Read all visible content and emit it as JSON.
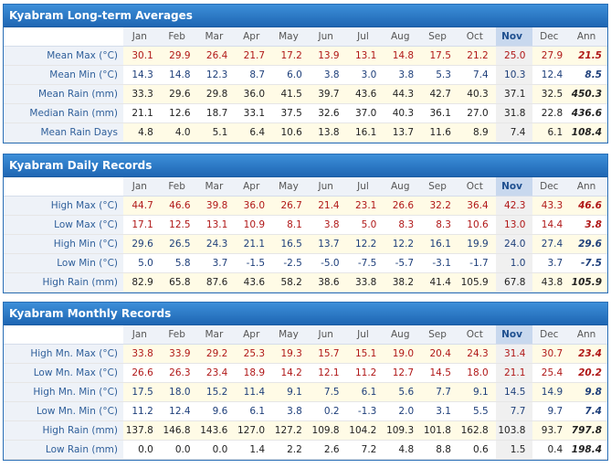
{
  "months": [
    "Jan",
    "Feb",
    "Mar",
    "Apr",
    "May",
    "Jun",
    "Jul",
    "Aug",
    "Sep",
    "Oct",
    "Nov",
    "Dec",
    "Ann"
  ],
  "selected_month": "Nov",
  "panels": [
    {
      "title": "Kyabram Long-term Averages",
      "rows": [
        {
          "label": "Mean Max (°C)",
          "color": "red",
          "values": [
            "30.1",
            "29.9",
            "26.4",
            "21.7",
            "17.2",
            "13.9",
            "13.1",
            "14.8",
            "17.5",
            "21.2",
            "25.0",
            "27.9",
            "21.5"
          ]
        },
        {
          "label": "Mean Min (°C)",
          "color": "blue",
          "values": [
            "14.3",
            "14.8",
            "12.3",
            "8.7",
            "6.0",
            "3.8",
            "3.0",
            "3.8",
            "5.3",
            "7.4",
            "10.3",
            "12.4",
            "8.5"
          ]
        },
        {
          "label": "Mean Rain (mm)",
          "color": "black",
          "values": [
            "33.3",
            "29.6",
            "29.8",
            "36.0",
            "41.5",
            "39.7",
            "43.6",
            "44.3",
            "42.7",
            "40.3",
            "37.1",
            "32.5",
            "450.3"
          ]
        },
        {
          "label": "Median Rain (mm)",
          "color": "black",
          "values": [
            "21.1",
            "12.6",
            "18.7",
            "33.1",
            "37.5",
            "32.6",
            "37.0",
            "40.3",
            "36.1",
            "27.0",
            "31.8",
            "22.8",
            "436.6"
          ]
        },
        {
          "label": "Mean Rain Days",
          "color": "black",
          "values": [
            "4.8",
            "4.0",
            "5.1",
            "6.4",
            "10.6",
            "13.8",
            "16.1",
            "13.7",
            "11.6",
            "8.9",
            "7.4",
            "6.1",
            "108.4"
          ]
        }
      ]
    },
    {
      "title": "Kyabram Daily Records",
      "rows": [
        {
          "label": "High Max (°C)",
          "color": "red",
          "values": [
            "44.7",
            "46.6",
            "39.8",
            "36.0",
            "26.7",
            "21.4",
            "23.1",
            "26.6",
            "32.2",
            "36.4",
            "42.3",
            "43.3",
            "46.6"
          ]
        },
        {
          "label": "Low Max (°C)",
          "color": "red",
          "values": [
            "17.1",
            "12.5",
            "13.1",
            "10.9",
            "8.1",
            "3.8",
            "5.0",
            "8.3",
            "8.3",
            "10.6",
            "13.0",
            "14.4",
            "3.8"
          ]
        },
        {
          "label": "High Min (°C)",
          "color": "blue",
          "values": [
            "29.6",
            "26.5",
            "24.3",
            "21.1",
            "16.5",
            "13.7",
            "12.2",
            "12.2",
            "16.1",
            "19.9",
            "24.0",
            "27.4",
            "29.6"
          ]
        },
        {
          "label": "Low Min (°C)",
          "color": "blue",
          "values": [
            "5.0",
            "5.8",
            "3.7",
            "-1.5",
            "-2.5",
            "-5.0",
            "-7.5",
            "-5.7",
            "-3.1",
            "-1.7",
            "1.0",
            "3.7",
            "-7.5"
          ]
        },
        {
          "label": "High Rain (mm)",
          "color": "black",
          "values": [
            "82.9",
            "65.8",
            "87.6",
            "43.6",
            "58.2",
            "38.6",
            "33.8",
            "38.2",
            "41.4",
            "105.9",
            "67.8",
            "43.8",
            "105.9"
          ]
        }
      ]
    },
    {
      "title": "Kyabram Monthly Records",
      "rows": [
        {
          "label": "High Mn. Max (°C)",
          "color": "red",
          "values": [
            "33.8",
            "33.9",
            "29.2",
            "25.3",
            "19.3",
            "15.7",
            "15.1",
            "19.0",
            "20.4",
            "24.3",
            "31.4",
            "30.7",
            "23.4"
          ]
        },
        {
          "label": "Low Mn. Max (°C)",
          "color": "red",
          "values": [
            "26.6",
            "26.3",
            "23.4",
            "18.9",
            "14.2",
            "12.1",
            "11.2",
            "12.7",
            "14.5",
            "18.0",
            "21.1",
            "25.4",
            "20.2"
          ]
        },
        {
          "label": "High Mn. Min (°C)",
          "color": "blue",
          "values": [
            "17.5",
            "18.0",
            "15.2",
            "11.4",
            "9.1",
            "7.5",
            "6.1",
            "5.6",
            "7.7",
            "9.1",
            "14.5",
            "14.9",
            "9.8"
          ]
        },
        {
          "label": "Low Mn. Min (°C)",
          "color": "blue",
          "values": [
            "11.2",
            "12.4",
            "9.6",
            "6.1",
            "3.8",
            "0.2",
            "-1.3",
            "2.0",
            "3.1",
            "5.5",
            "7.7",
            "9.7",
            "7.4"
          ]
        },
        {
          "label": "High Rain (mm)",
          "color": "black",
          "values": [
            "137.8",
            "146.8",
            "143.6",
            "127.0",
            "127.2",
            "109.8",
            "104.2",
            "109.3",
            "101.8",
            "162.8",
            "103.8",
            "93.7",
            "797.8"
          ]
        },
        {
          "label": "Low Rain (mm)",
          "color": "black",
          "values": [
            "0.0",
            "0.0",
            "0.0",
            "1.4",
            "2.2",
            "2.6",
            "7.2",
            "4.8",
            "8.8",
            "0.6",
            "1.5",
            "0.4",
            "198.4"
          ]
        }
      ]
    }
  ]
}
